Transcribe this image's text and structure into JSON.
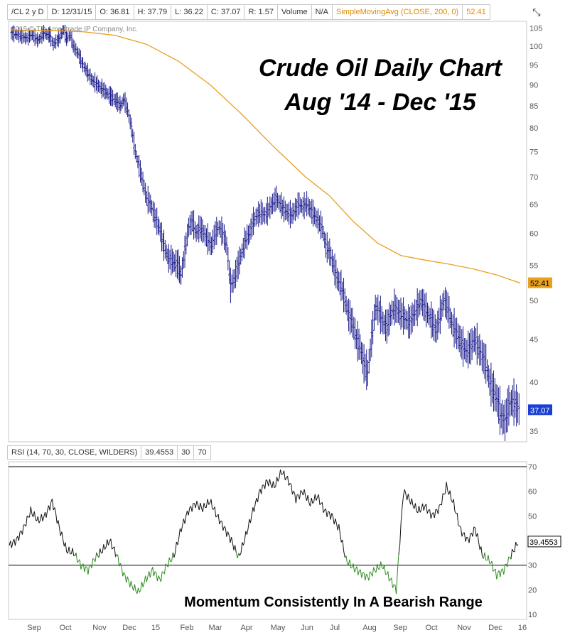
{
  "header": {
    "symbol": "/CL 2 y D",
    "date": "D: 12/31/15",
    "open": "O: 36.81",
    "high": "H: 37.79",
    "low": "L: 36.22",
    "close": "C: 37.07",
    "range": "R: 1.57",
    "volume_label": "Volume",
    "volume_value": "N/A",
    "sma_label": "SimpleMovingAvg (CLOSE, 200, 0)",
    "sma_value": "52.41",
    "expand_icon": "expand-icon"
  },
  "copyright": "2015 © TD Ameritrade IP Company, Inc.",
  "rsi_header": {
    "label": "RSI (14, 70, 30, CLOSE, WILDERS)",
    "value": "39.4553",
    "low": "30",
    "high": "70"
  },
  "colors": {
    "bars": "#1a1a8c",
    "sma": "#e8a020",
    "rsi": "#111111",
    "rsi_oversold": "#2e8b1e",
    "last_price_bg": "#1a3fd6",
    "sma_tag_bg": "#e8a020"
  },
  "chart_data": [
    {
      "type": "ohlc",
      "title": "Crude Oil Daily Chart",
      "subtitle": "Aug '14 - Dec '15",
      "ylim": [
        34,
        107
      ],
      "yticks": [
        35,
        40,
        45,
        50,
        55,
        60,
        65,
        70,
        75,
        80,
        85,
        90,
        95,
        100,
        105
      ],
      "xticks": [
        "Sep",
        "Oct",
        "Nov",
        "Dec",
        "15",
        "Feb",
        "Mar",
        "Apr",
        "May",
        "Jun",
        "Jul",
        "Aug",
        "Sep",
        "Oct",
        "Nov",
        "Dec",
        "16"
      ],
      "last_price_label": "37.07",
      "sma_label": "52.41",
      "price_close": [
        [
          0,
          103.5
        ],
        [
          8,
          103
        ],
        [
          15,
          102.2
        ],
        [
          22,
          103
        ],
        [
          28,
          101.5
        ],
        [
          34,
          103.5
        ],
        [
          40,
          103
        ],
        [
          44,
          100.5
        ],
        [
          50,
          102
        ],
        [
          55,
          104.5
        ],
        [
          58,
          102
        ],
        [
          62,
          103
        ],
        [
          65,
          100
        ],
        [
          70,
          98
        ],
        [
          75,
          95
        ],
        [
          80,
          93
        ],
        [
          85,
          91
        ],
        [
          90,
          90
        ],
        [
          95,
          89
        ],
        [
          100,
          88
        ],
        [
          105,
          87
        ],
        [
          110,
          86
        ],
        [
          115,
          85
        ],
        [
          118,
          86.5
        ],
        [
          122,
          84
        ],
        [
          126,
          80
        ],
        [
          130,
          75
        ],
        [
          134,
          72
        ],
        [
          138,
          69
        ],
        [
          142,
          66
        ],
        [
          146,
          65
        ],
        [
          150,
          63
        ],
        [
          155,
          61
        ],
        [
          160,
          58
        ],
        [
          165,
          56
        ],
        [
          170,
          55.5
        ],
        [
          175,
          55
        ],
        [
          178,
          53.5
        ],
        [
          182,
          57
        ],
        [
          186,
          61
        ],
        [
          190,
          62
        ],
        [
          194,
          60
        ],
        [
          198,
          61
        ],
        [
          202,
          60
        ],
        [
          206,
          59
        ],
        [
          210,
          58
        ],
        [
          214,
          60
        ],
        [
          218,
          61
        ],
        [
          222,
          60
        ],
        [
          226,
          58
        ],
        [
          230,
          52
        ],
        [
          234,
          53
        ],
        [
          238,
          55
        ],
        [
          242,
          57
        ],
        [
          246,
          59
        ],
        [
          250,
          60
        ],
        [
          254,
          62
        ],
        [
          258,
          63
        ],
        [
          262,
          63.5
        ],
        [
          266,
          63
        ],
        [
          270,
          64
        ],
        [
          274,
          65
        ],
        [
          278,
          66
        ],
        [
          282,
          65
        ],
        [
          286,
          64
        ],
        [
          290,
          63.5
        ],
        [
          294,
          63
        ],
        [
          298,
          64
        ],
        [
          302,
          65
        ],
        [
          306,
          64.5
        ],
        [
          310,
          65
        ],
        [
          314,
          64
        ],
        [
          318,
          63
        ],
        [
          322,
          62
        ],
        [
          326,
          61
        ],
        [
          330,
          58
        ],
        [
          334,
          57
        ],
        [
          338,
          55
        ],
        [
          342,
          53
        ],
        [
          346,
          52
        ],
        [
          350,
          50
        ],
        [
          354,
          48
        ],
        [
          358,
          47
        ],
        [
          362,
          45
        ],
        [
          366,
          44
        ],
        [
          370,
          42
        ],
        [
          374,
          41
        ],
        [
          378,
          45
        ],
        [
          382,
          49
        ],
        [
          386,
          48.5
        ],
        [
          390,
          47
        ],
        [
          394,
          46.5
        ],
        [
          398,
          48
        ],
        [
          402,
          49
        ],
        [
          406,
          48.5
        ],
        [
          410,
          48
        ],
        [
          414,
          47.5
        ],
        [
          418,
          47
        ],
        [
          422,
          48
        ],
        [
          426,
          49
        ],
        [
          430,
          50
        ],
        [
          434,
          49
        ],
        [
          438,
          48
        ],
        [
          442,
          47
        ],
        [
          446,
          46
        ],
        [
          450,
          48
        ],
        [
          454,
          50
        ],
        [
          458,
          49
        ],
        [
          462,
          47
        ],
        [
          466,
          46
        ],
        [
          470,
          45
        ],
        [
          474,
          44
        ],
        [
          478,
          43.5
        ],
        [
          482,
          44
        ],
        [
          486,
          45
        ],
        [
          490,
          44
        ],
        [
          494,
          43
        ],
        [
          498,
          42
        ],
        [
          502,
          40
        ],
        [
          506,
          39
        ],
        [
          510,
          38
        ],
        [
          514,
          36.5
        ],
        [
          518,
          36
        ],
        [
          522,
          37.5
        ],
        [
          526,
          38
        ],
        [
          530,
          37.5
        ],
        [
          534,
          37
        ]
      ],
      "sma200": [
        [
          0,
          104.5
        ],
        [
          60,
          104.3
        ],
        [
          90,
          104
        ],
        [
          130,
          103
        ],
        [
          170,
          100.5
        ],
        [
          210,
          96
        ],
        [
          250,
          90
        ],
        [
          290,
          83
        ],
        [
          330,
          76
        ],
        [
          370,
          70
        ],
        [
          400,
          66.5
        ],
        [
          430,
          62
        ],
        [
          460,
          58.5
        ],
        [
          490,
          56.5
        ],
        [
          520,
          55.8
        ],
        [
          550,
          55.2
        ],
        [
          580,
          54.5
        ],
        [
          610,
          53.6
        ],
        [
          640,
          52.41
        ]
      ]
    },
    {
      "type": "line",
      "title": "RSI (14, 70, 30, CLOSE, WILDERS)",
      "annotation": "Momentum Consistently In A Bearish Range",
      "ylim": [
        8,
        72
      ],
      "yticks": [
        10,
        20,
        30,
        40,
        50,
        60,
        70
      ],
      "reference_lines": [
        30,
        70
      ],
      "last_value_label": "39.4553",
      "rsi": [
        [
          0,
          38
        ],
        [
          10,
          40
        ],
        [
          20,
          45
        ],
        [
          30,
          52
        ],
        [
          40,
          48
        ],
        [
          50,
          50
        ],
        [
          60,
          56
        ],
        [
          70,
          45
        ],
        [
          80,
          36
        ],
        [
          90,
          35
        ],
        [
          100,
          30
        ],
        [
          110,
          28
        ],
        [
          120,
          33
        ],
        [
          130,
          36
        ],
        [
          140,
          40
        ],
        [
          150,
          34
        ],
        [
          160,
          26
        ],
        [
          170,
          22
        ],
        [
          180,
          19
        ],
        [
          190,
          24
        ],
        [
          200,
          28
        ],
        [
          210,
          24
        ],
        [
          220,
          30
        ],
        [
          230,
          34
        ],
        [
          240,
          45
        ],
        [
          250,
          52
        ],
        [
          260,
          55
        ],
        [
          270,
          53
        ],
        [
          280,
          56
        ],
        [
          290,
          50
        ],
        [
          300,
          45
        ],
        [
          310,
          40
        ],
        [
          320,
          33
        ],
        [
          330,
          42
        ],
        [
          340,
          52
        ],
        [
          350,
          60
        ],
        [
          360,
          64
        ],
        [
          370,
          62
        ],
        [
          380,
          68
        ],
        [
          390,
          64
        ],
        [
          400,
          57
        ],
        [
          410,
          60
        ],
        [
          420,
          55
        ],
        [
          430,
          58
        ],
        [
          440,
          52
        ],
        [
          450,
          50
        ],
        [
          460,
          45
        ],
        [
          470,
          32
        ],
        [
          480,
          29
        ],
        [
          490,
          27
        ],
        [
          500,
          25
        ],
        [
          510,
          28
        ],
        [
          520,
          30
        ],
        [
          530,
          25
        ],
        [
          540,
          20
        ],
        [
          550,
          60
        ],
        [
          560,
          56
        ],
        [
          570,
          52
        ],
        [
          580,
          54
        ],
        [
          590,
          50
        ],
        [
          600,
          53
        ],
        [
          610,
          62
        ],
        [
          620,
          55
        ],
        [
          630,
          44
        ],
        [
          640,
          40
        ],
        [
          650,
          45
        ],
        [
          660,
          34
        ],
        [
          670,
          32
        ],
        [
          680,
          26
        ],
        [
          690,
          28
        ],
        [
          700,
          34
        ],
        [
          710,
          39.4553
        ]
      ]
    }
  ]
}
